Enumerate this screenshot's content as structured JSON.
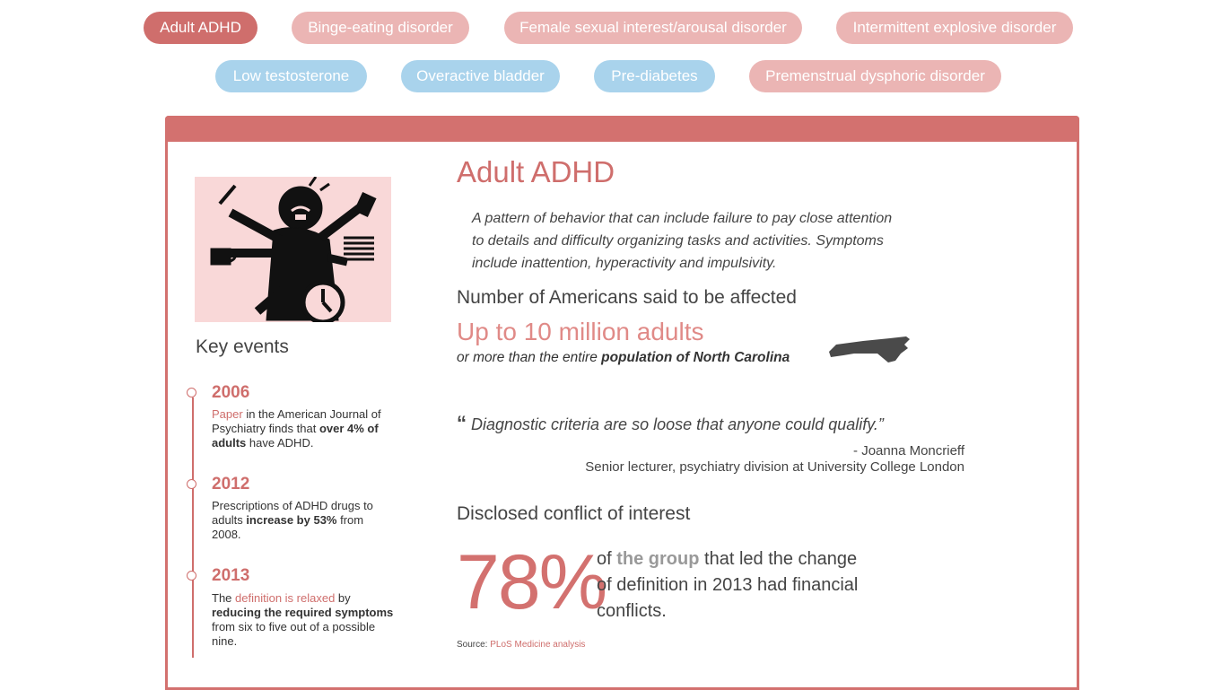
{
  "tabs": [
    {
      "label": "Adult ADHD",
      "state": "active"
    },
    {
      "label": "Binge-eating disorder",
      "state": "red"
    },
    {
      "label": "Female sexual interest/arousal disorder",
      "state": "red"
    },
    {
      "label": "Intermittent explosive disorder",
      "state": "red"
    },
    {
      "label": "Low testosterone",
      "state": "blue"
    },
    {
      "label": "Overactive bladder",
      "state": "blue"
    },
    {
      "label": "Pre-diabetes",
      "state": "blue"
    },
    {
      "label": "Premenstrual dysphoric disorder",
      "state": "red"
    }
  ],
  "colors": {
    "accent": "#d3716f",
    "tab_red": "#ebb5b4",
    "tab_blue": "#a9d3ec",
    "illustration_bg": "#f9d8d8"
  },
  "sidebar": {
    "illustration_icon": "multitasking-person-icon",
    "key_events_title": "Key events",
    "events": [
      {
        "year": "2006",
        "link": "Paper",
        "text_a": " in the American Journal of Psychiatry finds that ",
        "bold": "over 4% of adults",
        "text_b": " have ADHD."
      },
      {
        "year": "2012",
        "text_a": "Prescriptions of ADHD drugs to adults ",
        "bold": "increase by 53%",
        "text_b": " from 2008."
      },
      {
        "year": "2013",
        "text_a": "The ",
        "link": "definition is relaxed",
        "text_b": " by ",
        "bold": "reducing the required symptoms",
        "text_c": " from six to five out of a possible nine."
      }
    ]
  },
  "main": {
    "title": "Adult ADHD",
    "description": "A pattern of behavior that can include failure to pay close attention to details and difficulty organizing tasks and activities. Symptoms include inattention, hyperactivity and impulsivity.",
    "affected_heading": "Number of Americans said to be affected",
    "affected_number": "Up to 10 million adults",
    "affected_comparison_prefix": "or more than the entire ",
    "affected_comparison_bold": "population of North Carolina",
    "state_icon": "north-carolina-map-icon",
    "quote_mark": "“",
    "quote_text": " Diagnostic criteria are so loose that anyone could qualify.”",
    "quote_author": "- Joanna Moncrieff",
    "quote_role": "Senior lecturer, psychiatry division at University College London",
    "conflict_heading": "Disclosed conflict of interest",
    "conflict_percent": "78%",
    "conflict_text_a": "of ",
    "conflict_text_bold": "the group",
    "conflict_text_b": " that led the change of definition in 2013 had financial conflicts.",
    "source_label": "Source: ",
    "source_link": "PLoS Medicine analysis"
  }
}
